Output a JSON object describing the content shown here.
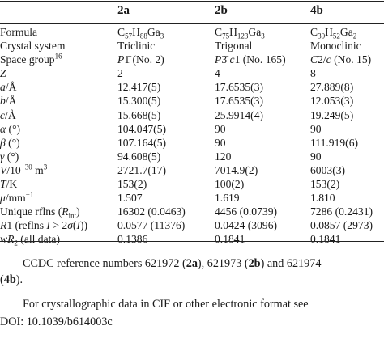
{
  "header": {
    "blank": "",
    "cols": [
      "2a",
      "2b",
      "4b"
    ]
  },
  "rows": [
    {
      "label": "Formula",
      "cells": [
        {
          "parts": [
            {
              "t": "C"
            },
            {
              "sub": "57"
            },
            {
              "t": "H"
            },
            {
              "sub": "88"
            },
            {
              "t": "Ga"
            },
            {
              "sub": "3"
            }
          ]
        },
        {
          "parts": [
            {
              "t": "C"
            },
            {
              "sub": "75"
            },
            {
              "t": "H"
            },
            {
              "sub": "123"
            },
            {
              "t": "Ga"
            },
            {
              "sub": "3"
            }
          ]
        },
        {
          "parts": [
            {
              "t": "C"
            },
            {
              "sub": "30"
            },
            {
              "t": "H"
            },
            {
              "sub": "52"
            },
            {
              "t": "Ga"
            },
            {
              "sub": "2"
            }
          ]
        }
      ]
    },
    {
      "label": "Crystal system",
      "cells": [
        "Triclinic",
        "Trigonal",
        "Monoclinic"
      ]
    },
    {
      "label_parts": [
        {
          "t": "Space group"
        },
        {
          "sup": "16"
        }
      ],
      "cells": [
        {
          "parts": [
            {
              "i": "P"
            },
            {
              "t": "1̄ (No. 2)"
            }
          ]
        },
        {
          "parts": [
            {
              "i": "P"
            },
            {
              "t": "3̄ "
            },
            {
              "i": "c"
            },
            {
              "t": "1 (No. 165)"
            }
          ]
        },
        {
          "parts": [
            {
              "i": "C"
            },
            {
              "t": "2/"
            },
            {
              "i": "c"
            },
            {
              "t": " (No. 15)"
            }
          ]
        }
      ]
    },
    {
      "label_parts": [
        {
          "i": "Z"
        }
      ],
      "cells": [
        "2",
        "4",
        "8"
      ]
    },
    {
      "label_parts": [
        {
          "i": "a"
        },
        {
          "t": "/Å"
        }
      ],
      "cells": [
        "12.417(5)",
        "17.6535(3)",
        "27.889(8)"
      ]
    },
    {
      "label_parts": [
        {
          "i": "b"
        },
        {
          "t": "/Å"
        }
      ],
      "cells": [
        "15.300(5)",
        "17.6535(3)",
        "12.053(3)"
      ]
    },
    {
      "label_parts": [
        {
          "i": "c"
        },
        {
          "t": "/Å"
        }
      ],
      "cells": [
        "15.668(5)",
        "25.9914(4)",
        "19.249(5)"
      ]
    },
    {
      "label_parts": [
        {
          "i": "α"
        },
        {
          "t": " (°)"
        }
      ],
      "cells": [
        "104.047(5)",
        "90",
        "90"
      ]
    },
    {
      "label_parts": [
        {
          "i": "β"
        },
        {
          "t": " (°)"
        }
      ],
      "cells": [
        "107.164(5)",
        "90",
        "111.919(6)"
      ]
    },
    {
      "label_parts": [
        {
          "i": "γ"
        },
        {
          "t": " (°)"
        }
      ],
      "cells": [
        "94.608(5)",
        "120",
        "90"
      ]
    },
    {
      "label_parts": [
        {
          "i": "V"
        },
        {
          "t": "/10"
        },
        {
          "sup": "−30"
        },
        {
          "t": " m"
        },
        {
          "sup": "3"
        }
      ],
      "cells": [
        "2721.7(17)",
        "7014.9(2)",
        "6003(3)"
      ]
    },
    {
      "label_parts": [
        {
          "i": "T"
        },
        {
          "t": "/K"
        }
      ],
      "cells": [
        "153(2)",
        "100(2)",
        "153(2)"
      ]
    },
    {
      "label_parts": [
        {
          "i": "μ"
        },
        {
          "t": "/mm"
        },
        {
          "sup": "−1"
        }
      ],
      "cells": [
        "1.507",
        "1.619",
        "1.810"
      ]
    },
    {
      "label_parts": [
        {
          "t": "Unique rflns ("
        },
        {
          "i": "R"
        },
        {
          "sub": "int"
        },
        {
          "t": ")"
        }
      ],
      "cells": [
        "16302 (0.0463)",
        "4456 (0.0739)",
        "7286 (0.2431)"
      ]
    },
    {
      "label_parts": [
        {
          "i": "R"
        },
        {
          "t": "1 (reflns "
        },
        {
          "i": "I"
        },
        {
          "t": " > 2"
        },
        {
          "i": "σ"
        },
        {
          "t": "("
        },
        {
          "i": "I"
        },
        {
          "t": "))"
        }
      ],
      "cells": [
        "0.0577 (11376)",
        "0.0424 (3096)",
        "0.0857 (2973)"
      ]
    },
    {
      "label_parts": [
        {
          "i": "w"
        },
        {
          "i": "R"
        },
        {
          "sub": "2"
        },
        {
          "t": " (all data)"
        }
      ],
      "cells": [
        "0.1386",
        "0.1841",
        "0.1841"
      ]
    }
  ],
  "paragraphs": {
    "ccdc_line1_parts": [
      {
        "t": "CCDC reference numbers 621972 ("
      },
      {
        "b": "2a"
      },
      {
        "t": "), 621973 ("
      },
      {
        "b": "2b"
      },
      {
        "t": ") and 621974"
      }
    ],
    "ccdc_line2_parts": [
      {
        "t": "("
      },
      {
        "b": "4b"
      },
      {
        "t": ")."
      }
    ],
    "crys_line": "For crystallographic data in CIF or other electronic format see",
    "doi_line": "DOI: 10.1039/b614003c"
  }
}
